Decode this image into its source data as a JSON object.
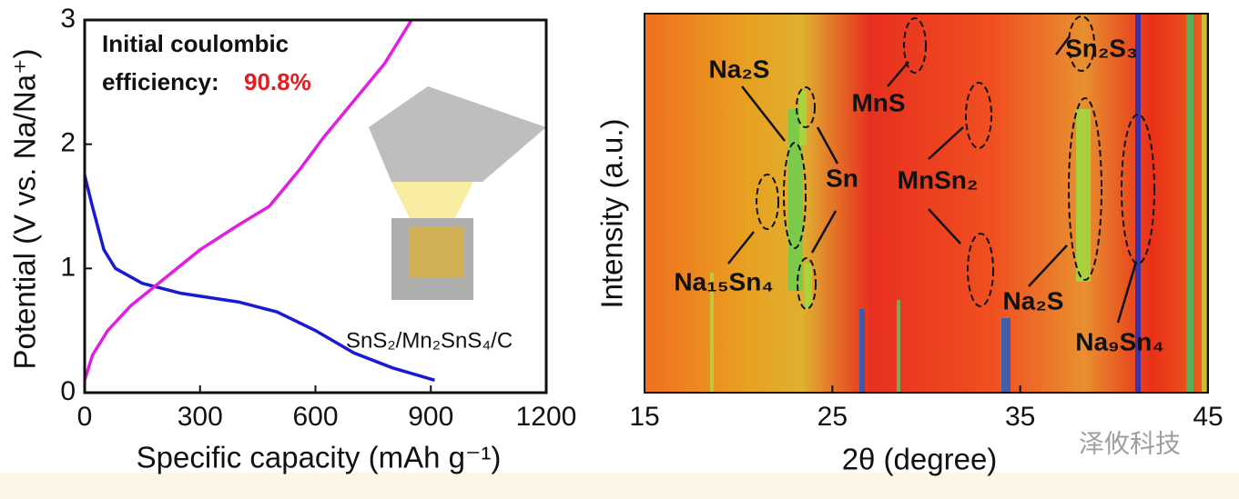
{
  "chart_data": [
    {
      "type": "line",
      "x_label": "Specific capacity (mAh g⁻¹)",
      "y_label": "Potential (V vs. Na/Na⁺)",
      "annotation": "Initial coulombic",
      "annotation_2": "efficiency:",
      "annotation_value": "90.8%",
      "material_label": "SnS₂/Mn₂SnS₄/C",
      "xlim": [
        0,
        1200
      ],
      "xticks": [
        0,
        300,
        600,
        900,
        1200
      ],
      "ylim": [
        0,
        3
      ],
      "yticks": [
        0,
        1,
        2,
        3
      ],
      "series": [
        {
          "color": "#1a1ad0",
          "x": [
            0,
            20,
            50,
            80,
            150,
            250,
            400,
            500,
            600,
            700,
            800,
            910
          ],
          "values": [
            1.75,
            1.5,
            1.15,
            1.0,
            0.88,
            0.8,
            0.73,
            0.65,
            0.5,
            0.32,
            0.2,
            0.1
          ]
        },
        {
          "color": "#e020e0",
          "x": [
            0,
            20,
            60,
            120,
            200,
            300,
            400,
            480,
            560,
            620,
            700,
            780,
            850
          ],
          "values": [
            0.1,
            0.3,
            0.5,
            0.7,
            0.9,
            1.15,
            1.35,
            1.5,
            1.8,
            2.05,
            2.35,
            2.65,
            3.0
          ]
        }
      ]
    },
    {
      "type": "heatmap",
      "x_label": "2θ (degree)",
      "y_label": "Intensity (a.u.)",
      "xlim": [
        15,
        45
      ],
      "xticks": [
        15,
        25,
        35,
        45
      ],
      "annotations": [
        "Na₂S",
        "Sn",
        "MnS",
        "MnSn₂",
        "Sn₂S₃",
        "Na₁₅Sn₄",
        "Na₂S",
        "Na₉Sn₄"
      ],
      "watermark": "泽攸科技"
    }
  ]
}
